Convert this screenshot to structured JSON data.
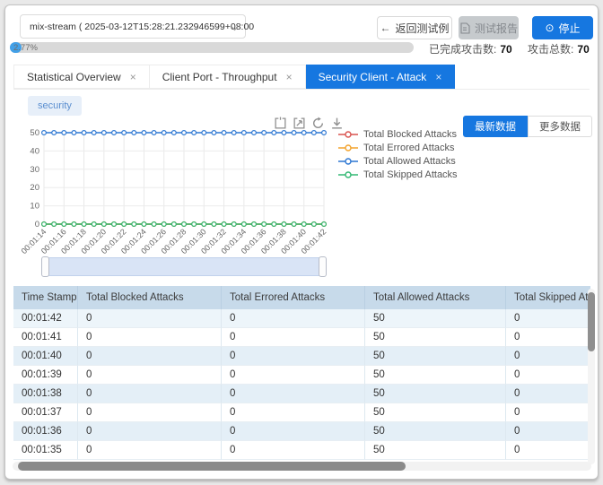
{
  "toolbar": {
    "test_select_value": "mix-stream ( 2025-03-12T15:28:21.232946599+08:00",
    "back_button": "返回测试例",
    "back_arrow": "←",
    "report_button": "测试报告",
    "stop_button": "停止",
    "stop_icon_glyph": "⊙"
  },
  "progress": {
    "label": "2.77%",
    "percent": 2.77
  },
  "stats": {
    "completed_label": "已完成攻击数:",
    "completed_value": "70",
    "total_label": "攻击总数:",
    "total_value": "70"
  },
  "tabs": [
    {
      "label": "Statistical Overview",
      "active": false
    },
    {
      "label": "Client Port - Throughput",
      "active": false
    },
    {
      "label": "Security Client - Attack",
      "active": true
    }
  ],
  "badge": "security",
  "data_buttons": {
    "latest": "最新数据",
    "more": "更多数据"
  },
  "colors": {
    "accent": "#1677e0",
    "table_header_bg": "#c7daea",
    "row_tint": "#e4eff7",
    "slider_fill": "#d9e4f6"
  },
  "chart_data": {
    "type": "line",
    "title": "",
    "xlabel": "",
    "ylabel": "",
    "ylim": [
      0,
      50
    ],
    "yticks": [
      0,
      10,
      20,
      30,
      40,
      50
    ],
    "grid": true,
    "legend_position": "right",
    "tick_every": 2,
    "x": [
      "00:01:14",
      "00:01:15",
      "00:01:16",
      "00:01:17",
      "00:01:18",
      "00:01:19",
      "00:01:20",
      "00:01:21",
      "00:01:22",
      "00:01:23",
      "00:01:24",
      "00:01:25",
      "00:01:26",
      "00:01:27",
      "00:01:28",
      "00:01:29",
      "00:01:30",
      "00:01:31",
      "00:01:32",
      "00:01:33",
      "00:01:34",
      "00:01:35",
      "00:01:36",
      "00:01:37",
      "00:01:38",
      "00:01:39",
      "00:01:40",
      "00:01:41",
      "00:01:42"
    ],
    "series": [
      {
        "name": "Total Blocked Attacks",
        "color": "#d9534f",
        "values": [
          0,
          0,
          0,
          0,
          0,
          0,
          0,
          0,
          0,
          0,
          0,
          0,
          0,
          0,
          0,
          0,
          0,
          0,
          0,
          0,
          0,
          0,
          0,
          0,
          0,
          0,
          0,
          0,
          0
        ]
      },
      {
        "name": "Total Errored Attacks",
        "color": "#f3a32d",
        "values": [
          0,
          0,
          0,
          0,
          0,
          0,
          0,
          0,
          0,
          0,
          0,
          0,
          0,
          0,
          0,
          0,
          0,
          0,
          0,
          0,
          0,
          0,
          0,
          0,
          0,
          0,
          0,
          0,
          0
        ]
      },
      {
        "name": "Total Allowed Attacks",
        "color": "#2d77d2",
        "values": [
          50,
          50,
          50,
          50,
          50,
          50,
          50,
          50,
          50,
          50,
          50,
          50,
          50,
          50,
          50,
          50,
          50,
          50,
          50,
          50,
          50,
          50,
          50,
          50,
          50,
          50,
          50,
          50,
          50
        ]
      },
      {
        "name": "Total Skipped Attacks",
        "color": "#32b873",
        "values": [
          0,
          0,
          0,
          0,
          0,
          0,
          0,
          0,
          0,
          0,
          0,
          0,
          0,
          0,
          0,
          0,
          0,
          0,
          0,
          0,
          0,
          0,
          0,
          0,
          0,
          0,
          0,
          0,
          0
        ]
      }
    ]
  },
  "table": {
    "columns": [
      "Time Stamp",
      "Total Blocked Attacks",
      "Total Errored Attacks",
      "Total Allowed Attacks",
      "Total Skipped Attacks"
    ],
    "rows": [
      [
        "00:01:42",
        "0",
        "0",
        "50",
        "0"
      ],
      [
        "00:01:41",
        "0",
        "0",
        "50",
        "0"
      ],
      [
        "00:01:40",
        "0",
        "0",
        "50",
        "0"
      ],
      [
        "00:01:39",
        "0",
        "0",
        "50",
        "0"
      ],
      [
        "00:01:38",
        "0",
        "0",
        "50",
        "0"
      ],
      [
        "00:01:37",
        "0",
        "0",
        "50",
        "0"
      ],
      [
        "00:01:36",
        "0",
        "0",
        "50",
        "0"
      ],
      [
        "00:01:35",
        "0",
        "0",
        "50",
        "0"
      ]
    ]
  }
}
